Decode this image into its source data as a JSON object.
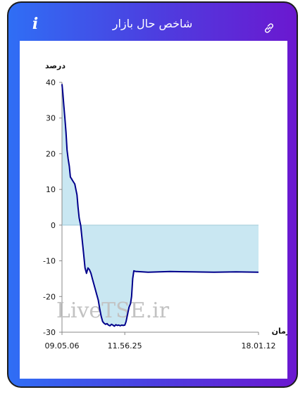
{
  "header": {
    "title": "شاخص حال بازار",
    "info_icon": "info-icon",
    "link_icon": "link-icon"
  },
  "colors": {
    "gradient_start": "#2f6ef5",
    "gradient_end": "#6b18d0",
    "line": "#00008b",
    "fill": "#c9e7f2"
  },
  "watermark": "LiveTSE.ir",
  "chart_data": {
    "type": "area",
    "title": "",
    "ylabel": "درصد",
    "xlabel": "زمان",
    "ylim": [
      -30,
      40
    ],
    "yticks": [
      40,
      30,
      20,
      10,
      0,
      -10,
      -20,
      -30
    ],
    "xlim": [
      "09.05.06",
      "18.01.12"
    ],
    "xtick_labels": [
      "09.05.06",
      "11.56.25",
      "18.01.12"
    ],
    "grid": false,
    "series": [
      {
        "x": [
          "09.05.06",
          "09.07.30",
          "09.10.00",
          "09.13.00",
          "09.16.00",
          "09.19.00",
          "09.22.00",
          "09.25.00",
          "09.28.00",
          "09.31.00",
          "09.34.00",
          "09.37.00",
          "09.40.00",
          "09.43.00",
          "09.46.00",
          "09.49.00",
          "09.52.00",
          "09.56.00",
          "10.00.00",
          "10.04.00",
          "10.08.00",
          "10.12.00",
          "10.16.00",
          "10.20.00",
          "10.24.00",
          "10.28.00",
          "10.32.00",
          "10.36.00",
          "10.40.00",
          "10.44.00",
          "10.48.00",
          "10.52.00",
          "10.56.00",
          "11.00.00",
          "11.04.00",
          "11.08.00",
          "11.12.00",
          "11.16.00",
          "11.20.00",
          "11.24.00",
          "11.28.00",
          "11.32.00",
          "11.36.00",
          "11.40.00",
          "11.44.00",
          "11.48.00",
          "11.52.00",
          "11.56.25",
          "12.00.00",
          "12.04.00",
          "12.08.00",
          "12.12.00",
          "12.15.00",
          "12.18.00",
          "12.21.00",
          "12.24.00",
          "12.27.00",
          "12.30.00",
          "12.45.00",
          "13.00.00",
          "14.00.00",
          "15.00.00",
          "16.00.00",
          "17.00.00",
          "18.01.12"
        ],
        "y": [
          39.5,
          37.0,
          33.5,
          30.0,
          26.0,
          21.0,
          18.5,
          16.5,
          13.5,
          13.0,
          12.5,
          12.0,
          11.5,
          10.0,
          8.5,
          5.0,
          2.0,
          0.0,
          -4.0,
          -8.0,
          -12.0,
          -13.5,
          -12.0,
          -12.5,
          -13.5,
          -15.0,
          -16.5,
          -18.0,
          -19.5,
          -21.0,
          -23.5,
          -25.5,
          -27.0,
          -27.5,
          -27.8,
          -27.6,
          -28.0,
          -28.2,
          -27.8,
          -28.0,
          -28.3,
          -27.9,
          -28.1,
          -28.0,
          -28.2,
          -28.0,
          -28.1,
          -28.0,
          -27.0,
          -25.0,
          -23.0,
          -22.0,
          -20.0,
          -15.0,
          -12.8,
          -12.9,
          -13.0,
          -13.0,
          -13.1,
          -13.2,
          -13.0,
          -13.1,
          -13.2,
          -13.1,
          -13.2
        ]
      }
    ]
  }
}
